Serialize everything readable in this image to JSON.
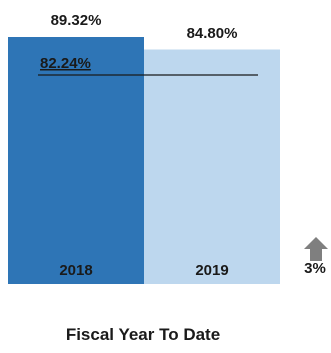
{
  "chart_data": {
    "type": "bar",
    "categories": [
      "2018",
      "2019"
    ],
    "values": [
      89.32,
      84.8
    ],
    "value_labels": [
      "89.32%",
      "84.80%"
    ],
    "colors": [
      "#2e75b6",
      "#bdd7ee"
    ],
    "reference": {
      "value": 82.24,
      "label": "82.24%"
    },
    "change": {
      "direction": "up",
      "label": "3%",
      "color": "#7f7f7f"
    },
    "xlabel": "Fiscal Year To Date",
    "ylim": [
      0,
      89.32
    ],
    "grid": false
  }
}
